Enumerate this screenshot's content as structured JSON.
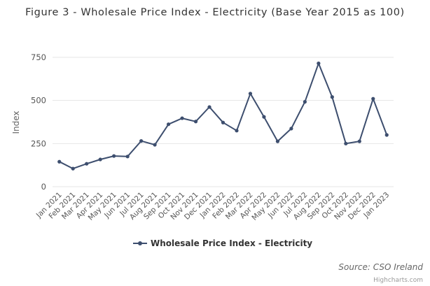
{
  "chart_data": {
    "type": "line",
    "title": "Figure 3 - Wholesale Price Index - Electricity (Base Year 2015 as 100)",
    "xlabel": "",
    "ylabel": "Index",
    "ylim": [
      0,
      750
    ],
    "yticks": [
      "0",
      "250",
      "500",
      "750"
    ],
    "grid": true,
    "legend_position": "bottom-center",
    "categories": [
      "Jan 2021",
      "Feb 2021",
      "Mar 2021",
      "Apr 2021",
      "May 2021",
      "Jun 2021",
      "Jul 2021",
      "Aug 2021",
      "Sep 2021",
      "Oct 2021",
      "Nov 2021",
      "Dec 2021",
      "Jan 2022",
      "Feb 2022",
      "Mar 2022",
      "Apr 2022",
      "May 2022",
      "Jun 2022",
      "Jul 2022",
      "Aug 2022",
      "Sep 2022",
      "Oct 2022",
      "Nov 2022",
      "Dec 2022",
      "Jan 2023"
    ],
    "series": [
      {
        "name": "Wholesale Price Index - Electricity",
        "color": "#3d4e6e",
        "values": [
          145,
          105,
          133,
          158,
          178,
          175,
          265,
          243,
          362,
          397,
          378,
          462,
          372,
          325,
          540,
          405,
          263,
          337,
          492,
          715,
          520,
          250,
          263,
          510,
          300
        ]
      }
    ]
  },
  "source_note": "Source: CSO Ireland",
  "credits": "Highcharts.com"
}
